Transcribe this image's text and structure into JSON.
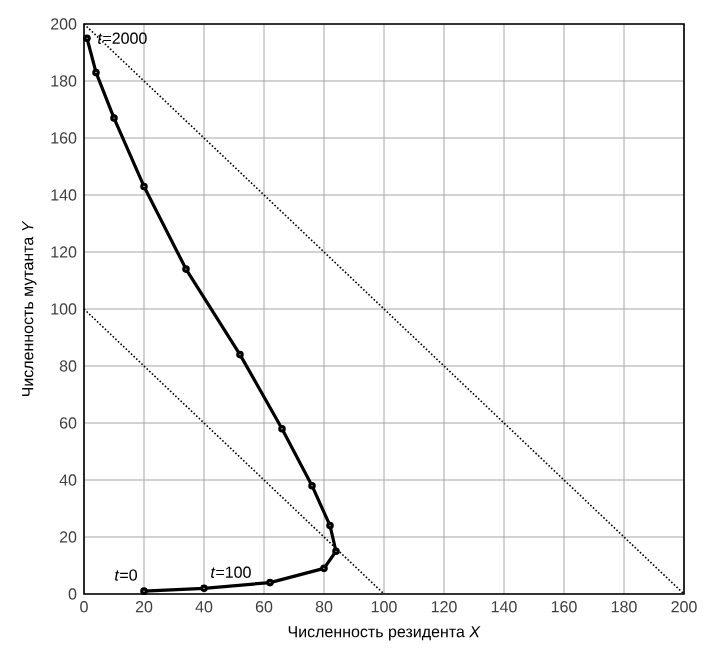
{
  "chart_data": {
    "type": "line",
    "xlabel": "Численность резидента *X*",
    "ylabel": "Численность мутанта *Y*",
    "xlim": [
      0,
      200
    ],
    "ylim": [
      0,
      200
    ],
    "xticks": [
      0,
      20,
      40,
      60,
      80,
      100,
      120,
      140,
      160,
      180,
      200
    ],
    "yticks": [
      0,
      20,
      40,
      60,
      80,
      100,
      120,
      140,
      160,
      180,
      200
    ],
    "grid": true,
    "series": [
      {
        "color": "#000000",
        "marker": "circle",
        "line_style": "solid",
        "x": [
          20,
          40,
          62,
          80,
          84,
          82,
          76,
          66,
          52,
          34,
          20,
          10,
          4,
          1
        ],
        "values": [
          1,
          2,
          4,
          9,
          15,
          24,
          38,
          58,
          84,
          114,
          143,
          167,
          183,
          195
        ]
      },
      {
        "color": "#000000",
        "marker": "none",
        "line_style": "dotted",
        "x": [
          0,
          100
        ],
        "values": [
          100,
          0
        ]
      },
      {
        "color": "#000000",
        "marker": "none",
        "line_style": "dotted",
        "x": [
          0,
          200
        ],
        "values": [
          200,
          0
        ]
      }
    ],
    "annotations": [
      {
        "text": "*t*=0",
        "x": 20,
        "y": 1
      },
      {
        "text": "*t*=100",
        "x": 40,
        "y": 2
      },
      {
        "text": "*t*=2000",
        "x": 1,
        "y": 195
      }
    ]
  }
}
